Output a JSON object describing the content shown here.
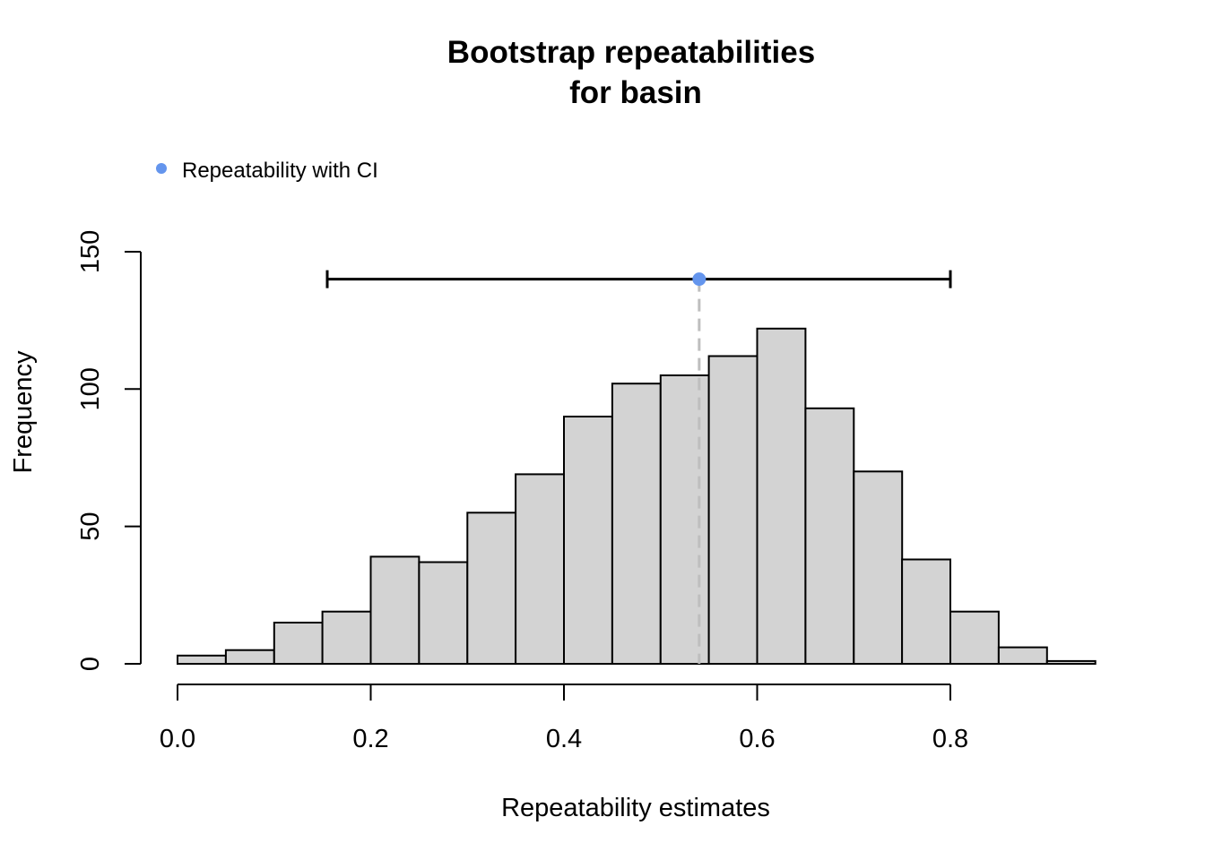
{
  "chart_data": {
    "type": "bar",
    "title_line1": "Bootstrap repeatabilities",
    "title_line2": "for basin",
    "xlabel": "Repeatability estimates",
    "ylabel": "Frequency",
    "xlim": [
      0,
      0.95
    ],
    "ylim": [
      0,
      150
    ],
    "x_ticks": [
      "0.0",
      "0.2",
      "0.4",
      "0.6",
      "0.8"
    ],
    "x_tick_values": [
      0.0,
      0.2,
      0.4,
      0.6,
      0.8
    ],
    "y_ticks": [
      "0",
      "50",
      "100",
      "150"
    ],
    "y_tick_values": [
      0,
      50,
      100,
      150
    ],
    "bins": [
      {
        "start": 0.0,
        "end": 0.05,
        "count": 3
      },
      {
        "start": 0.05,
        "end": 0.1,
        "count": 5
      },
      {
        "start": 0.1,
        "end": 0.15,
        "count": 15
      },
      {
        "start": 0.15,
        "end": 0.2,
        "count": 19
      },
      {
        "start": 0.2,
        "end": 0.25,
        "count": 39
      },
      {
        "start": 0.25,
        "end": 0.3,
        "count": 37
      },
      {
        "start": 0.3,
        "end": 0.35,
        "count": 55
      },
      {
        "start": 0.35,
        "end": 0.4,
        "count": 69
      },
      {
        "start": 0.4,
        "end": 0.45,
        "count": 90
      },
      {
        "start": 0.45,
        "end": 0.5,
        "count": 102
      },
      {
        "start": 0.5,
        "end": 0.55,
        "count": 105
      },
      {
        "start": 0.55,
        "end": 0.6,
        "count": 112
      },
      {
        "start": 0.6,
        "end": 0.65,
        "count": 122
      },
      {
        "start": 0.65,
        "end": 0.7,
        "count": 93
      },
      {
        "start": 0.7,
        "end": 0.75,
        "count": 70
      },
      {
        "start": 0.75,
        "end": 0.8,
        "count": 38
      },
      {
        "start": 0.8,
        "end": 0.85,
        "count": 19
      },
      {
        "start": 0.85,
        "end": 0.9,
        "count": 6
      },
      {
        "start": 0.9,
        "end": 0.95,
        "count": 1
      }
    ],
    "bar_fill": "#d3d3d3",
    "bar_stroke": "#000000",
    "estimate": {
      "value": 0.54,
      "ci_lower": 0.155,
      "ci_upper": 0.8,
      "plot_y": 140,
      "point_color": "#6495ed",
      "vline_color": "#bebebe"
    },
    "legend": {
      "label": "Repeatability with CI",
      "position": "top-left",
      "marker_color": "#6495ed"
    },
    "grid": false
  }
}
